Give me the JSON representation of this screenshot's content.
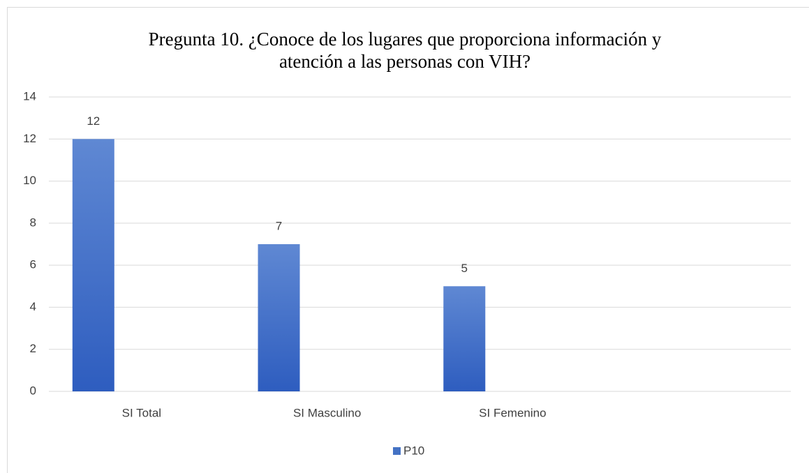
{
  "chart_data": {
    "type": "bar",
    "title": "Pregunta 10. ¿Conoce de los lugares que proporciona información y atención a las personas con VIH?",
    "categories": [
      "SI Total",
      "SI Masculino",
      "SI Femenino",
      null
    ],
    "series": [
      {
        "name": "P10",
        "color": "#4472c4",
        "values": [
          12,
          7,
          5,
          null
        ]
      }
    ],
    "ylim": [
      0,
      14
    ],
    "yticks": [
      0,
      2,
      4,
      6,
      8,
      10,
      12,
      14
    ],
    "grid": true,
    "legend": "bottom"
  }
}
